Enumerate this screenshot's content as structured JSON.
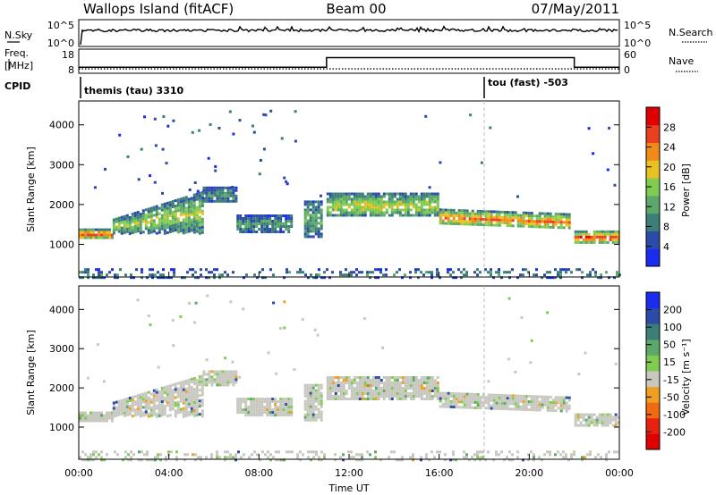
{
  "header": {
    "station": "Wallops Island (fitACF)",
    "beam": "Beam 00",
    "date": "07/May/2011"
  },
  "sky_panel": {
    "left_label": "N.Sky",
    "right_label": "N.Search",
    "left_ticks": [
      "10^5",
      "10^0"
    ],
    "right_ticks": [
      "10^5",
      "10^0"
    ]
  },
  "freq_panel": {
    "left_label_1": "Freq.",
    "left_label_2": "[MHz]",
    "right_label": "Nave",
    "left_ticks": [
      "18",
      "8"
    ],
    "right_ticks": [
      "60",
      "0"
    ]
  },
  "cpid_panel": {
    "label": "CPID",
    "programs": [
      {
        "name": "themis (tau) 3310",
        "start_hour": 0
      },
      {
        "name": "tou (fast) -503",
        "start_hour": 18
      }
    ]
  },
  "x_axis": {
    "label": "Time UT",
    "ticks": [
      "00:00",
      "04:00",
      "08:00",
      "12:00",
      "16:00",
      "20:00",
      "00:00"
    ]
  },
  "power_panel": {
    "ylabel": "Slant Range [km]",
    "yticks": [
      "1000",
      "2000",
      "3000",
      "4000"
    ],
    "colorbar_label": "Power [dB]",
    "colorbar_ticks": [
      "4",
      "8",
      "12",
      "16",
      "20",
      "24",
      "28"
    ],
    "colors": [
      "#1a2cf0",
      "#2c4aa8",
      "#3c7e78",
      "#5aa86a",
      "#7fcc50",
      "#e8c020",
      "#f08a18",
      "#e84020",
      "#e00000"
    ]
  },
  "velocity_panel": {
    "ylabel": "Slant Range [km]",
    "yticks": [
      "1000",
      "2000",
      "3000",
      "4000"
    ],
    "colorbar_label": "Velocity [m s⁻¹]",
    "colorbar_ticks": [
      "200",
      "100",
      "50",
      "15",
      "-15",
      "-50",
      "-100",
      "-200"
    ],
    "colors": [
      "#1a2cf0",
      "#2c4aa8",
      "#3c7e78",
      "#5aa86a",
      "#7fcc50",
      "#c8c8c0",
      "#f0a020",
      "#f06a10",
      "#e82010",
      "#e00000"
    ]
  },
  "chart_data": [
    {
      "type": "line",
      "title": "N.Sky / N.Search",
      "x": [
        0,
        0.1,
        12,
        24
      ],
      "series": [
        {
          "name": "N.Sky",
          "values": [
            0,
            4.2,
            4.1,
            4.3
          ]
        }
      ],
      "ylim": [
        0,
        5
      ]
    },
    {
      "type": "line",
      "title": "Freq. [MHz] / Nave",
      "x": [
        0,
        11,
        11.01,
        22,
        22.01,
        24
      ],
      "series": [
        {
          "name": "Freq.",
          "values": [
            10.5,
            10.5,
            14.5,
            14.5,
            10.5,
            10.5
          ]
        },
        {
          "name": "Nave",
          "values": [
            11,
            11,
            11,
            11,
            11,
            11
          ]
        }
      ]
    },
    {
      "type": "heatmap",
      "title": "Power [dB]",
      "xlabel": "Time UT",
      "ylabel": "Slant Range [km]",
      "xlim": [
        0,
        24
      ],
      "ylim": [
        180,
        4600
      ],
      "colorbar": {
        "label": "Power [dB]",
        "range": [
          0,
          30
        ]
      },
      "echo_bands": [
        {
          "t_start": 0.0,
          "t_end": 1.5,
          "range_start_km": 1150,
          "range_end_km": 1400,
          "peak_db": 26
        },
        {
          "t_start": 1.5,
          "t_end": 5.5,
          "range_start_km": 1300,
          "range_end_km": 2150,
          "peak_db": 16
        },
        {
          "t_start": 5.5,
          "t_end": 7.0,
          "range_start_km": 2050,
          "range_end_km": 2450,
          "peak_db": 10
        },
        {
          "t_start": 7.0,
          "t_end": 9.5,
          "range_start_km": 1300,
          "range_end_km": 1750,
          "peak_db": 10
        },
        {
          "t_start": 10.0,
          "t_end": 10.8,
          "range_start_km": 1200,
          "range_end_km": 2100,
          "peak_db": 12
        },
        {
          "t_start": 11.0,
          "t_end": 16.0,
          "range_start_km": 1700,
          "range_end_km": 2300,
          "peak_db": 18
        },
        {
          "t_start": 16.0,
          "t_end": 21.8,
          "range_start_km": 1500,
          "range_end_km": 1900,
          "peak_db": 24
        },
        {
          "t_start": 22.0,
          "t_end": 24.0,
          "range_start_km": 1050,
          "range_end_km": 1350,
          "peak_db": 28
        },
        {
          "t_start": 0.0,
          "t_end": 24.0,
          "range_start_km": 180,
          "range_end_km": 400,
          "peak_db": 8
        }
      ]
    },
    {
      "type": "heatmap",
      "title": "Velocity [m s⁻¹]",
      "xlabel": "Time UT",
      "ylabel": "Slant Range [km]",
      "xlim": [
        0,
        24
      ],
      "ylim": [
        180,
        4600
      ],
      "colorbar": {
        "label": "Velocity [m s⁻¹]",
        "range": [
          -200,
          200
        ]
      },
      "dominant_velocity_m_s": 0
    }
  ]
}
